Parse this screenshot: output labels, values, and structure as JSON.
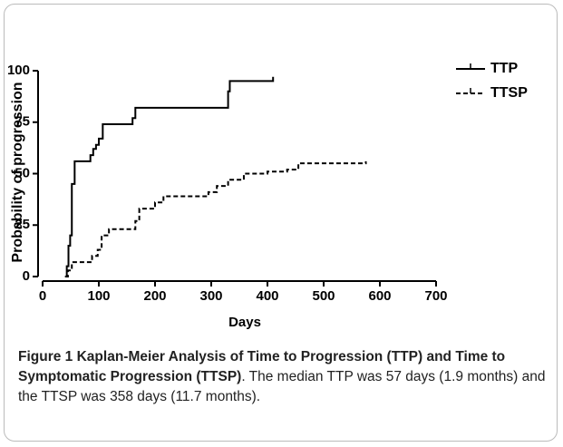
{
  "chart_data": {
    "type": "line",
    "step": true,
    "xlabel": "Days",
    "ylabel": "Probability of progression",
    "xlim": [
      0,
      700
    ],
    "xticks": [
      0,
      100,
      200,
      300,
      400,
      500,
      600,
      700
    ],
    "ylim": [
      0,
      100
    ],
    "yticks": [
      0,
      25,
      50,
      75,
      100
    ],
    "legend": "upper right",
    "series": [
      {
        "name": "TTP",
        "color": "#000000",
        "line_style": "solid",
        "x": [
          40,
          43,
          46,
          49,
          52,
          57,
          85,
          90,
          95,
          100,
          107,
          160,
          165,
          330,
          333,
          410
        ],
        "values": [
          0,
          5,
          15,
          20,
          45,
          56,
          59,
          62,
          64,
          67,
          74,
          77,
          82,
          90,
          95,
          97
        ]
      },
      {
        "name": "TTSP",
        "color": "#000000",
        "line_style": "dashed",
        "x": [
          40,
          45,
          52,
          80,
          88,
          98,
          105,
          118,
          155,
          165,
          172,
          200,
          215,
          285,
          295,
          310,
          330,
          358,
          400,
          435,
          455,
          575
        ],
        "values": [
          0,
          3,
          7,
          7,
          10,
          13,
          20,
          23,
          23,
          27,
          33,
          36,
          39,
          39,
          41,
          44,
          47,
          50,
          51,
          52,
          55,
          56
        ]
      }
    ]
  },
  "caption": {
    "label": "Figure 1",
    "title": "Kaplan-Meier Analysis of Time to Progression (TTP) and Time to Symptomatic Progression (TTSP)",
    "text": ". The median TTP was 57 days (1.9 months) and the TTSP was 358 days (11.7 months)."
  }
}
